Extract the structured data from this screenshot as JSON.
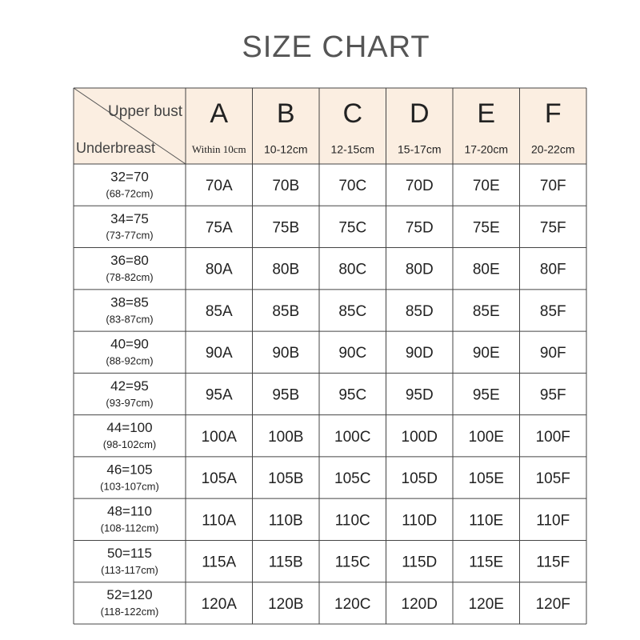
{
  "title": "SIZE  CHART",
  "corner": {
    "top": "Upper bust",
    "bottom": "Underbreast"
  },
  "columns": [
    {
      "letter": "A",
      "range": "Within 10cm"
    },
    {
      "letter": "B",
      "range": "10-12cm"
    },
    {
      "letter": "C",
      "range": "12-15cm"
    },
    {
      "letter": "D",
      "range": "15-17cm"
    },
    {
      "letter": "E",
      "range": "17-20cm"
    },
    {
      "letter": "F",
      "range": "20-22cm"
    }
  ],
  "rows": [
    {
      "size": "32=70",
      "range": "(68-72cm)",
      "cells": [
        "70A",
        "70B",
        "70C",
        "70D",
        "70E",
        "70F"
      ]
    },
    {
      "size": "34=75",
      "range": "(73-77cm)",
      "cells": [
        "75A",
        "75B",
        "75C",
        "75D",
        "75E",
        "75F"
      ]
    },
    {
      "size": "36=80",
      "range": "(78-82cm)",
      "cells": [
        "80A",
        "80B",
        "80C",
        "80D",
        "80E",
        "80F"
      ]
    },
    {
      "size": "38=85",
      "range": "(83-87cm)",
      "cells": [
        "85A",
        "85B",
        "85C",
        "85D",
        "85E",
        "85F"
      ]
    },
    {
      "size": "40=90",
      "range": "(88-92cm)",
      "cells": [
        "90A",
        "90B",
        "90C",
        "90D",
        "90E",
        "90F"
      ]
    },
    {
      "size": "42=95",
      "range": "(93-97cm)",
      "cells": [
        "95A",
        "95B",
        "95C",
        "95D",
        "95E",
        "95F"
      ]
    },
    {
      "size": "44=100",
      "range": "(98-102cm)",
      "cells": [
        "100A",
        "100B",
        "100C",
        "100D",
        "100E",
        "100F"
      ]
    },
    {
      "size": "46=105",
      "range": "(103-107cm)",
      "cells": [
        "105A",
        "105B",
        "105C",
        "105D",
        "105E",
        "105F"
      ]
    },
    {
      "size": "48=110",
      "range": "(108-112cm)",
      "cells": [
        "110A",
        "110B",
        "110C",
        "110D",
        "110E",
        "110F"
      ]
    },
    {
      "size": "50=115",
      "range": "(113-117cm)",
      "cells": [
        "115A",
        "115B",
        "115C",
        "115D",
        "115E",
        "115F"
      ]
    },
    {
      "size": "52=120",
      "range": "(118-122cm)",
      "cells": [
        "120A",
        "120B",
        "120C",
        "120D",
        "120E",
        "120F"
      ]
    }
  ]
}
